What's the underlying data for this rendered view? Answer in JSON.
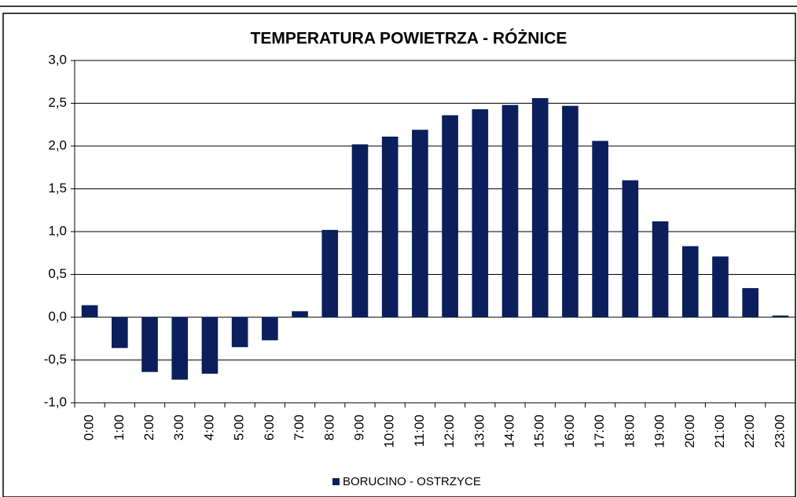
{
  "chart_data": {
    "type": "bar",
    "title": "TEMPERATURA POWIETRZA - RÓŻNICE",
    "categories": [
      "0:00",
      "1:00",
      "2:00",
      "3:00",
      "4:00",
      "5:00",
      "6:00",
      "7:00",
      "8:00",
      "9:00",
      "10:00",
      "11:00",
      "12:00",
      "13:00",
      "14:00",
      "15:00",
      "16:00",
      "17:00",
      "18:00",
      "19:00",
      "20:00",
      "21:00",
      "22:00",
      "23:00"
    ],
    "series": [
      {
        "name": "BORUCINO  - OSTRZYCE",
        "color": "#0a1f5c",
        "values": [
          0.14,
          -0.36,
          -0.64,
          -0.73,
          -0.66,
          -0.35,
          -0.27,
          0.07,
          1.02,
          2.02,
          2.11,
          2.19,
          2.36,
          2.43,
          2.48,
          2.56,
          2.47,
          2.06,
          1.6,
          1.12,
          0.83,
          0.71,
          0.34,
          0.02
        ]
      }
    ],
    "ylim": [
      -1,
      3
    ],
    "yticks": [
      {
        "value": -1,
        "label": "-1,0"
      },
      {
        "value": -0.5,
        "label": "-0,5"
      },
      {
        "value": 0,
        "label": "0,0"
      },
      {
        "value": 0.5,
        "label": "0,5"
      },
      {
        "value": 1,
        "label": "1,0"
      },
      {
        "value": 1.5,
        "label": "1,5"
      },
      {
        "value": 2,
        "label": "2,0"
      },
      {
        "value": 2.5,
        "label": "2,5"
      },
      {
        "value": 3,
        "label": "3,0"
      }
    ],
    "grid": true,
    "legend": "bottom"
  }
}
